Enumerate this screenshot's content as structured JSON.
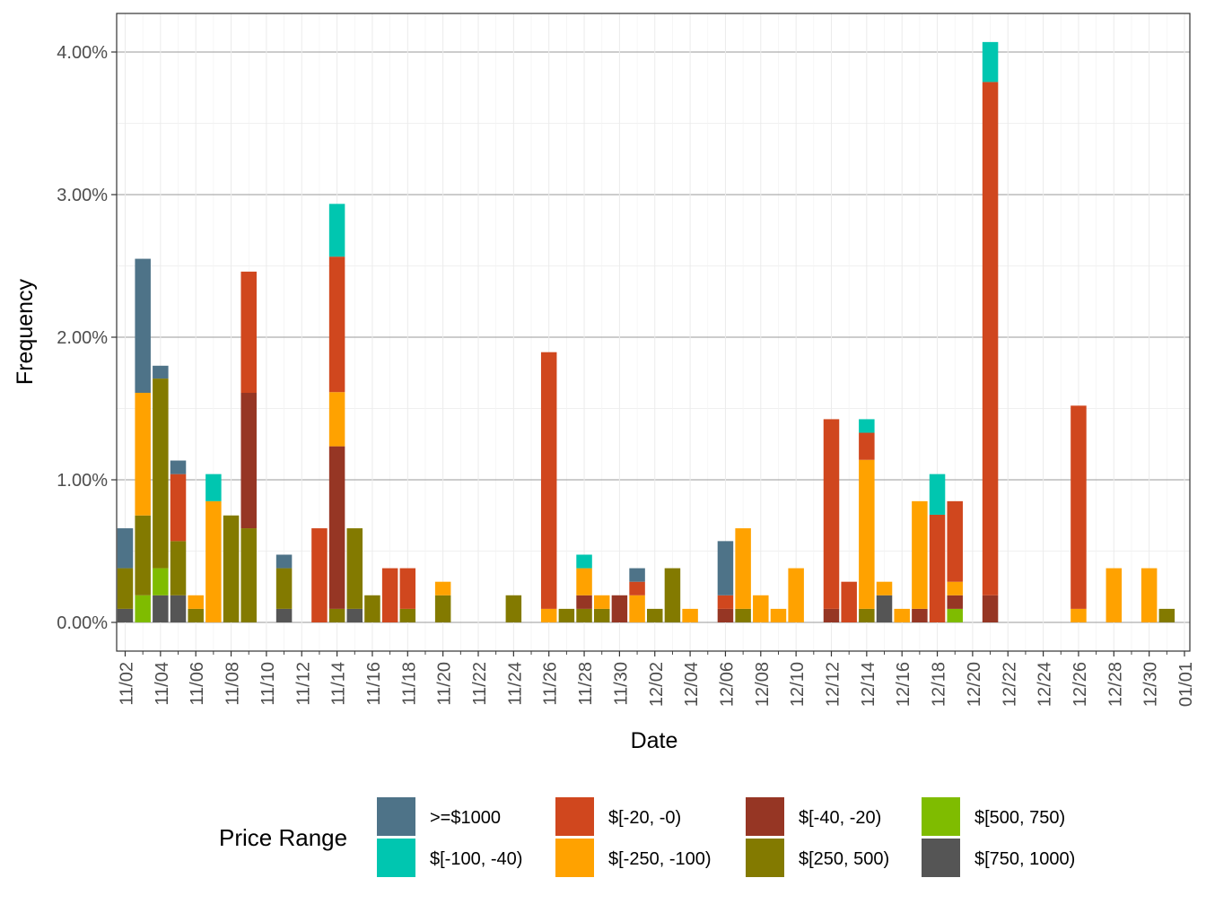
{
  "chart_data": {
    "type": "bar",
    "stacked": true,
    "xlabel": "Date",
    "ylabel": "Frequency",
    "ylim": [
      -0.2,
      4.3
    ],
    "y_ticks": [
      0,
      1,
      2,
      3,
      4
    ],
    "y_tick_labels": [
      "0.00%",
      "1.00%",
      "2.00%",
      "3.00%",
      "4.00%"
    ],
    "y_unit": "percent",
    "x_start": "11/02",
    "x_tick_labels": [
      "11/02",
      "11/04",
      "11/06",
      "11/08",
      "11/10",
      "11/12",
      "11/14",
      "11/16",
      "11/18",
      "11/20",
      "11/22",
      "11/24",
      "11/26",
      "11/28",
      "11/30",
      "12/02",
      "12/04",
      "12/06",
      "12/08",
      "12/10",
      "12/12",
      "12/14",
      "12/16",
      "12/18",
      "12/20",
      "12/22",
      "12/24",
      "12/26",
      "12/28",
      "12/30",
      "01/01"
    ],
    "grid": true,
    "legend_title": "Price Range",
    "legend_position": "bottom",
    "legend": [
      {
        "key": "gte1000",
        "label": ">=$1000",
        "color": "#4e7388"
      },
      {
        "key": "n100_40",
        "label": "$[-100, -40)",
        "color": "#00c6b0"
      },
      {
        "key": "n20_0",
        "label": "$[-20, -0)",
        "color": "#d0471e"
      },
      {
        "key": "n250_100",
        "label": "$[-250, -100)",
        "color": "#ffa200"
      },
      {
        "key": "n40_20",
        "label": "$[-40, -20)",
        "color": "#963624"
      },
      {
        "key": "p250_500",
        "label": "$[250, 500)",
        "color": "#837a00"
      },
      {
        "key": "p500_750",
        "label": "$[500, 750)",
        "color": "#7fbc00"
      },
      {
        "key": "p750_1000",
        "label": "$[750, 1000)",
        "color": "#555555"
      }
    ],
    "stack_order": [
      "p750_1000",
      "p500_750",
      "p250_500",
      "n40_20",
      "n250_100",
      "n20_0",
      "n100_40",
      "gte1000"
    ],
    "bars": [
      {
        "date": "11/02",
        "values": {
          "p750_1000": 0.095,
          "p250_500": 0.285,
          "gte1000": 0.28
        }
      },
      {
        "date": "11/03",
        "values": {
          "p500_750": 0.19,
          "p250_500": 0.56,
          "n250_100": 0.86,
          "gte1000": 0.94
        }
      },
      {
        "date": "11/04",
        "values": {
          "p750_1000": 0.19,
          "p500_750": 0.19,
          "p250_500": 1.33,
          "gte1000": 0.09
        }
      },
      {
        "date": "11/05",
        "values": {
          "p750_1000": 0.19,
          "p250_500": 0.38,
          "n20_0": 0.47,
          "gte1000": 0.095
        }
      },
      {
        "date": "11/06",
        "values": {
          "p250_500": 0.095,
          "n250_100": 0.095
        }
      },
      {
        "date": "11/07",
        "values": {
          "n250_100": 0.85,
          "n100_40": 0.19
        }
      },
      {
        "date": "11/08",
        "values": {
          "p250_500": 0.75
        }
      },
      {
        "date": "11/09",
        "values": {
          "p250_500": 0.66,
          "n40_20": 0.95,
          "n20_0": 0.85
        }
      },
      {
        "date": "11/11",
        "values": {
          "p750_1000": 0.095,
          "p250_500": 0.285,
          "gte1000": 0.095
        }
      },
      {
        "date": "11/13",
        "values": {
          "n20_0": 0.66
        }
      },
      {
        "date": "11/14",
        "values": {
          "p250_500": 0.095,
          "n40_20": 1.14,
          "n250_100": 0.38,
          "n20_0": 0.95,
          "n100_40": 0.37
        }
      },
      {
        "date": "11/15",
        "values": {
          "p750_1000": 0.095,
          "p250_500": 0.565
        }
      },
      {
        "date": "11/16",
        "values": {
          "p250_500": 0.19
        }
      },
      {
        "date": "11/17",
        "values": {
          "n20_0": 0.38
        }
      },
      {
        "date": "11/18",
        "values": {
          "p250_500": 0.095,
          "n20_0": 0.285
        }
      },
      {
        "date": "11/20",
        "values": {
          "p250_500": 0.19,
          "n250_100": 0.095
        }
      },
      {
        "date": "11/24",
        "values": {
          "p250_500": 0.19
        }
      },
      {
        "date": "11/26",
        "values": {
          "n250_100": 0.095,
          "n20_0": 1.8
        }
      },
      {
        "date": "11/27",
        "values": {
          "p250_500": 0.095
        }
      },
      {
        "date": "11/28",
        "values": {
          "p250_500": 0.095,
          "n40_20": 0.095,
          "n250_100": 0.19,
          "n100_40": 0.095
        }
      },
      {
        "date": "11/29",
        "values": {
          "p250_500": 0.095,
          "n250_100": 0.095
        }
      },
      {
        "date": "11/30",
        "values": {
          "n40_20": 0.19
        }
      },
      {
        "date": "12/01",
        "values": {
          "n250_100": 0.19,
          "n20_0": 0.095,
          "gte1000": 0.095
        }
      },
      {
        "date": "12/02",
        "values": {
          "p250_500": 0.095
        }
      },
      {
        "date": "12/03",
        "values": {
          "p250_500": 0.38
        }
      },
      {
        "date": "12/04",
        "values": {
          "n250_100": 0.095
        }
      },
      {
        "date": "12/06",
        "values": {
          "n40_20": 0.095,
          "n20_0": 0.095,
          "gte1000": 0.38
        }
      },
      {
        "date": "12/07",
        "values": {
          "p250_500": 0.095,
          "n250_100": 0.565
        }
      },
      {
        "date": "12/08",
        "values": {
          "n250_100": 0.19
        }
      },
      {
        "date": "12/09",
        "values": {
          "n250_100": 0.095
        }
      },
      {
        "date": "12/10",
        "values": {
          "n250_100": 0.38
        }
      },
      {
        "date": "12/12",
        "values": {
          "n40_20": 0.095,
          "n20_0": 1.33
        }
      },
      {
        "date": "12/13",
        "values": {
          "n20_0": 0.285
        }
      },
      {
        "date": "12/14",
        "values": {
          "p250_500": 0.095,
          "n250_100": 1.045,
          "n20_0": 0.19,
          "n100_40": 0.095
        }
      },
      {
        "date": "12/15",
        "values": {
          "p750_1000": 0.19,
          "n250_100": 0.095
        }
      },
      {
        "date": "12/16",
        "values": {
          "n250_100": 0.095
        }
      },
      {
        "date": "12/17",
        "values": {
          "n40_20": 0.095,
          "n250_100": 0.755
        }
      },
      {
        "date": "12/18",
        "values": {
          "n20_0": 0.755,
          "n100_40": 0.285
        }
      },
      {
        "date": "12/19",
        "values": {
          "p500_750": 0.095,
          "n40_20": 0.095,
          "n250_100": 0.095,
          "n20_0": 0.565
        }
      },
      {
        "date": "12/21",
        "values": {
          "n40_20": 0.19,
          "n20_0": 3.6,
          "n100_40": 0.28
        }
      },
      {
        "date": "12/26",
        "values": {
          "n250_100": 0.095,
          "n20_0": 1.425
        }
      },
      {
        "date": "12/28",
        "values": {
          "n250_100": 0.38
        }
      },
      {
        "date": "12/30",
        "values": {
          "n250_100": 0.38
        }
      },
      {
        "date": "12/31",
        "values": {
          "p250_500": 0.095
        }
      }
    ]
  }
}
